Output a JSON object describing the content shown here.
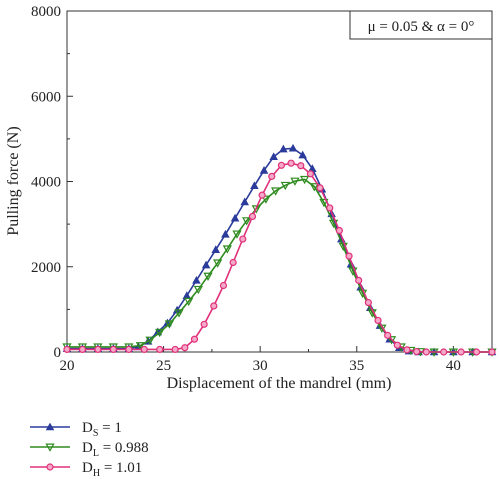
{
  "chart_data": {
    "type": "line",
    "xlabel": "Displacement of the mandrel (mm)",
    "ylabel": "Pulling force (N)",
    "xlim": [
      20,
      42
    ],
    "ylim": [
      0,
      8000
    ],
    "x_ticks": [
      "20",
      "25",
      "30",
      "35",
      "40"
    ],
    "y_ticks": [
      "0",
      "2000",
      "4000",
      "6000",
      "8000"
    ],
    "annotation": "μ = 0.05 & α = 0°",
    "legend_position": "bottom-left",
    "grid": false,
    "series": [
      {
        "name": "D_S = 1",
        "legend_main": "D",
        "legend_sub": "S",
        "legend_rest": " = 1",
        "color": "#2b3b9b",
        "marker": "triangle-up",
        "points": [
          [
            20,
            80
          ],
          [
            20.8,
            80
          ],
          [
            21.6,
            80
          ],
          [
            22.4,
            80
          ],
          [
            23.2,
            80
          ],
          [
            23.7,
            120
          ],
          [
            24.2,
            250
          ],
          [
            24.7,
            470
          ],
          [
            25.2,
            680
          ],
          [
            25.7,
            980
          ],
          [
            26.2,
            1320
          ],
          [
            26.7,
            1680
          ],
          [
            27.2,
            2040
          ],
          [
            27.7,
            2400
          ],
          [
            28.2,
            2760
          ],
          [
            28.7,
            3140
          ],
          [
            29.2,
            3520
          ],
          [
            29.7,
            3900
          ],
          [
            30.2,
            4260
          ],
          [
            30.7,
            4580
          ],
          [
            31.2,
            4760
          ],
          [
            31.7,
            4780
          ],
          [
            32.2,
            4620
          ],
          [
            32.7,
            4300
          ],
          [
            33.2,
            3820
          ],
          [
            33.7,
            3240
          ],
          [
            34.2,
            2650
          ],
          [
            34.7,
            2060
          ],
          [
            35.2,
            1520
          ],
          [
            35.7,
            1040
          ],
          [
            36.2,
            620
          ],
          [
            36.7,
            300
          ],
          [
            37.2,
            100
          ],
          [
            37.7,
            20
          ],
          [
            38.2,
            0
          ],
          [
            39,
            0
          ],
          [
            40,
            0
          ],
          [
            41,
            0
          ],
          [
            42,
            0
          ]
        ]
      },
      {
        "name": "D_L = 0.988",
        "legend_main": "D",
        "legend_sub": "L",
        "legend_rest": " = 0.988",
        "color": "#2e8b1f",
        "marker": "triangle-down",
        "points": [
          [
            20,
            120
          ],
          [
            20.8,
            120
          ],
          [
            21.6,
            120
          ],
          [
            22.4,
            120
          ],
          [
            23.2,
            120
          ],
          [
            23.8,
            150
          ],
          [
            24.3,
            280
          ],
          [
            24.8,
            460
          ],
          [
            25.3,
            660
          ],
          [
            25.8,
            920
          ],
          [
            26.3,
            1190
          ],
          [
            26.8,
            1470
          ],
          [
            27.3,
            1780
          ],
          [
            27.8,
            2090
          ],
          [
            28.3,
            2420
          ],
          [
            28.8,
            2770
          ],
          [
            29.3,
            3080
          ],
          [
            29.8,
            3360
          ],
          [
            30.3,
            3590
          ],
          [
            30.8,
            3780
          ],
          [
            31.3,
            3910
          ],
          [
            31.8,
            4010
          ],
          [
            32.3,
            4050
          ],
          [
            32.8,
            3880
          ],
          [
            33.3,
            3510
          ],
          [
            33.8,
            3020
          ],
          [
            34.3,
            2480
          ],
          [
            34.8,
            1900
          ],
          [
            35.3,
            1380
          ],
          [
            35.8,
            920
          ],
          [
            36.3,
            560
          ],
          [
            36.8,
            290
          ],
          [
            37.3,
            120
          ],
          [
            37.8,
            40
          ],
          [
            38.3,
            10
          ],
          [
            39,
            0
          ],
          [
            40,
            0
          ],
          [
            41,
            0
          ],
          [
            42,
            0
          ]
        ]
      },
      {
        "name": "D_H = 1.01",
        "legend_main": "D",
        "legend_sub": "H",
        "legend_rest": " = 1.01",
        "color": "#e0307a",
        "marker": "circle",
        "points": [
          [
            20,
            60
          ],
          [
            20.8,
            60
          ],
          [
            21.6,
            60
          ],
          [
            22.4,
            60
          ],
          [
            23.2,
            60
          ],
          [
            24.0,
            60
          ],
          [
            24.8,
            60
          ],
          [
            25.6,
            60
          ],
          [
            26.1,
            100
          ],
          [
            26.6,
            300
          ],
          [
            27.1,
            650
          ],
          [
            27.6,
            1080
          ],
          [
            28.1,
            1560
          ],
          [
            28.6,
            2100
          ],
          [
            29.1,
            2650
          ],
          [
            29.6,
            3180
          ],
          [
            30.1,
            3680
          ],
          [
            30.6,
            4120
          ],
          [
            31.1,
            4380
          ],
          [
            31.6,
            4430
          ],
          [
            32.1,
            4370
          ],
          [
            32.6,
            4180
          ],
          [
            33.1,
            3850
          ],
          [
            33.6,
            3380
          ],
          [
            34.1,
            2850
          ],
          [
            34.6,
            2250
          ],
          [
            35.1,
            1680
          ],
          [
            35.6,
            1160
          ],
          [
            36.1,
            740
          ],
          [
            36.6,
            390
          ],
          [
            37.1,
            160
          ],
          [
            37.6,
            50
          ],
          [
            38.1,
            10
          ],
          [
            38.6,
            0
          ],
          [
            39.5,
            0
          ],
          [
            40.4,
            0
          ],
          [
            41.2,
            0
          ],
          [
            42,
            0
          ]
        ]
      }
    ]
  }
}
